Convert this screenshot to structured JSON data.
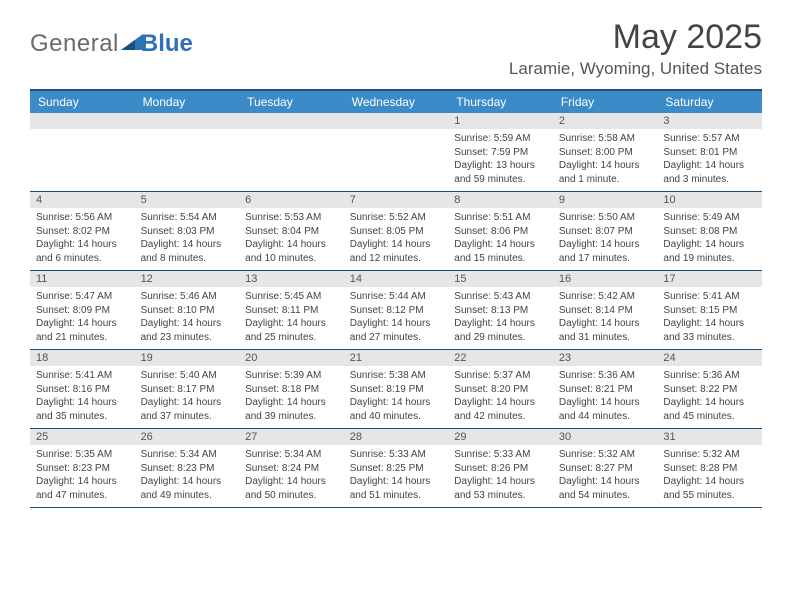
{
  "logo": {
    "general": "General",
    "blue": "Blue"
  },
  "header": {
    "month_title": "May 2025",
    "location": "Laramie, Wyoming, United States"
  },
  "dayheads": [
    "Sunday",
    "Monday",
    "Tuesday",
    "Wednesday",
    "Thursday",
    "Friday",
    "Saturday"
  ],
  "colors": {
    "header_bg": "#3b8bc9",
    "border": "#1a4f7a",
    "daynum_bg": "#e6e6e6",
    "text": "#444444",
    "logo_gray": "#6a6a6a",
    "logo_blue": "#2d72b8"
  },
  "weeks": [
    [
      {
        "day": "",
        "sunrise": "",
        "sunset": "",
        "daylight1": "",
        "daylight2": ""
      },
      {
        "day": "",
        "sunrise": "",
        "sunset": "",
        "daylight1": "",
        "daylight2": ""
      },
      {
        "day": "",
        "sunrise": "",
        "sunset": "",
        "daylight1": "",
        "daylight2": ""
      },
      {
        "day": "",
        "sunrise": "",
        "sunset": "",
        "daylight1": "",
        "daylight2": ""
      },
      {
        "day": "1",
        "sunrise": "Sunrise: 5:59 AM",
        "sunset": "Sunset: 7:59 PM",
        "daylight1": "Daylight: 13 hours",
        "daylight2": "and 59 minutes."
      },
      {
        "day": "2",
        "sunrise": "Sunrise: 5:58 AM",
        "sunset": "Sunset: 8:00 PM",
        "daylight1": "Daylight: 14 hours",
        "daylight2": "and 1 minute."
      },
      {
        "day": "3",
        "sunrise": "Sunrise: 5:57 AM",
        "sunset": "Sunset: 8:01 PM",
        "daylight1": "Daylight: 14 hours",
        "daylight2": "and 3 minutes."
      }
    ],
    [
      {
        "day": "4",
        "sunrise": "Sunrise: 5:56 AM",
        "sunset": "Sunset: 8:02 PM",
        "daylight1": "Daylight: 14 hours",
        "daylight2": "and 6 minutes."
      },
      {
        "day": "5",
        "sunrise": "Sunrise: 5:54 AM",
        "sunset": "Sunset: 8:03 PM",
        "daylight1": "Daylight: 14 hours",
        "daylight2": "and 8 minutes."
      },
      {
        "day": "6",
        "sunrise": "Sunrise: 5:53 AM",
        "sunset": "Sunset: 8:04 PM",
        "daylight1": "Daylight: 14 hours",
        "daylight2": "and 10 minutes."
      },
      {
        "day": "7",
        "sunrise": "Sunrise: 5:52 AM",
        "sunset": "Sunset: 8:05 PM",
        "daylight1": "Daylight: 14 hours",
        "daylight2": "and 12 minutes."
      },
      {
        "day": "8",
        "sunrise": "Sunrise: 5:51 AM",
        "sunset": "Sunset: 8:06 PM",
        "daylight1": "Daylight: 14 hours",
        "daylight2": "and 15 minutes."
      },
      {
        "day": "9",
        "sunrise": "Sunrise: 5:50 AM",
        "sunset": "Sunset: 8:07 PM",
        "daylight1": "Daylight: 14 hours",
        "daylight2": "and 17 minutes."
      },
      {
        "day": "10",
        "sunrise": "Sunrise: 5:49 AM",
        "sunset": "Sunset: 8:08 PM",
        "daylight1": "Daylight: 14 hours",
        "daylight2": "and 19 minutes."
      }
    ],
    [
      {
        "day": "11",
        "sunrise": "Sunrise: 5:47 AM",
        "sunset": "Sunset: 8:09 PM",
        "daylight1": "Daylight: 14 hours",
        "daylight2": "and 21 minutes."
      },
      {
        "day": "12",
        "sunrise": "Sunrise: 5:46 AM",
        "sunset": "Sunset: 8:10 PM",
        "daylight1": "Daylight: 14 hours",
        "daylight2": "and 23 minutes."
      },
      {
        "day": "13",
        "sunrise": "Sunrise: 5:45 AM",
        "sunset": "Sunset: 8:11 PM",
        "daylight1": "Daylight: 14 hours",
        "daylight2": "and 25 minutes."
      },
      {
        "day": "14",
        "sunrise": "Sunrise: 5:44 AM",
        "sunset": "Sunset: 8:12 PM",
        "daylight1": "Daylight: 14 hours",
        "daylight2": "and 27 minutes."
      },
      {
        "day": "15",
        "sunrise": "Sunrise: 5:43 AM",
        "sunset": "Sunset: 8:13 PM",
        "daylight1": "Daylight: 14 hours",
        "daylight2": "and 29 minutes."
      },
      {
        "day": "16",
        "sunrise": "Sunrise: 5:42 AM",
        "sunset": "Sunset: 8:14 PM",
        "daylight1": "Daylight: 14 hours",
        "daylight2": "and 31 minutes."
      },
      {
        "day": "17",
        "sunrise": "Sunrise: 5:41 AM",
        "sunset": "Sunset: 8:15 PM",
        "daylight1": "Daylight: 14 hours",
        "daylight2": "and 33 minutes."
      }
    ],
    [
      {
        "day": "18",
        "sunrise": "Sunrise: 5:41 AM",
        "sunset": "Sunset: 8:16 PM",
        "daylight1": "Daylight: 14 hours",
        "daylight2": "and 35 minutes."
      },
      {
        "day": "19",
        "sunrise": "Sunrise: 5:40 AM",
        "sunset": "Sunset: 8:17 PM",
        "daylight1": "Daylight: 14 hours",
        "daylight2": "and 37 minutes."
      },
      {
        "day": "20",
        "sunrise": "Sunrise: 5:39 AM",
        "sunset": "Sunset: 8:18 PM",
        "daylight1": "Daylight: 14 hours",
        "daylight2": "and 39 minutes."
      },
      {
        "day": "21",
        "sunrise": "Sunrise: 5:38 AM",
        "sunset": "Sunset: 8:19 PM",
        "daylight1": "Daylight: 14 hours",
        "daylight2": "and 40 minutes."
      },
      {
        "day": "22",
        "sunrise": "Sunrise: 5:37 AM",
        "sunset": "Sunset: 8:20 PM",
        "daylight1": "Daylight: 14 hours",
        "daylight2": "and 42 minutes."
      },
      {
        "day": "23",
        "sunrise": "Sunrise: 5:36 AM",
        "sunset": "Sunset: 8:21 PM",
        "daylight1": "Daylight: 14 hours",
        "daylight2": "and 44 minutes."
      },
      {
        "day": "24",
        "sunrise": "Sunrise: 5:36 AM",
        "sunset": "Sunset: 8:22 PM",
        "daylight1": "Daylight: 14 hours",
        "daylight2": "and 45 minutes."
      }
    ],
    [
      {
        "day": "25",
        "sunrise": "Sunrise: 5:35 AM",
        "sunset": "Sunset: 8:23 PM",
        "daylight1": "Daylight: 14 hours",
        "daylight2": "and 47 minutes."
      },
      {
        "day": "26",
        "sunrise": "Sunrise: 5:34 AM",
        "sunset": "Sunset: 8:23 PM",
        "daylight1": "Daylight: 14 hours",
        "daylight2": "and 49 minutes."
      },
      {
        "day": "27",
        "sunrise": "Sunrise: 5:34 AM",
        "sunset": "Sunset: 8:24 PM",
        "daylight1": "Daylight: 14 hours",
        "daylight2": "and 50 minutes."
      },
      {
        "day": "28",
        "sunrise": "Sunrise: 5:33 AM",
        "sunset": "Sunset: 8:25 PM",
        "daylight1": "Daylight: 14 hours",
        "daylight2": "and 51 minutes."
      },
      {
        "day": "29",
        "sunrise": "Sunrise: 5:33 AM",
        "sunset": "Sunset: 8:26 PM",
        "daylight1": "Daylight: 14 hours",
        "daylight2": "and 53 minutes."
      },
      {
        "day": "30",
        "sunrise": "Sunrise: 5:32 AM",
        "sunset": "Sunset: 8:27 PM",
        "daylight1": "Daylight: 14 hours",
        "daylight2": "and 54 minutes."
      },
      {
        "day": "31",
        "sunrise": "Sunrise: 5:32 AM",
        "sunset": "Sunset: 8:28 PM",
        "daylight1": "Daylight: 14 hours",
        "daylight2": "and 55 minutes."
      }
    ]
  ]
}
